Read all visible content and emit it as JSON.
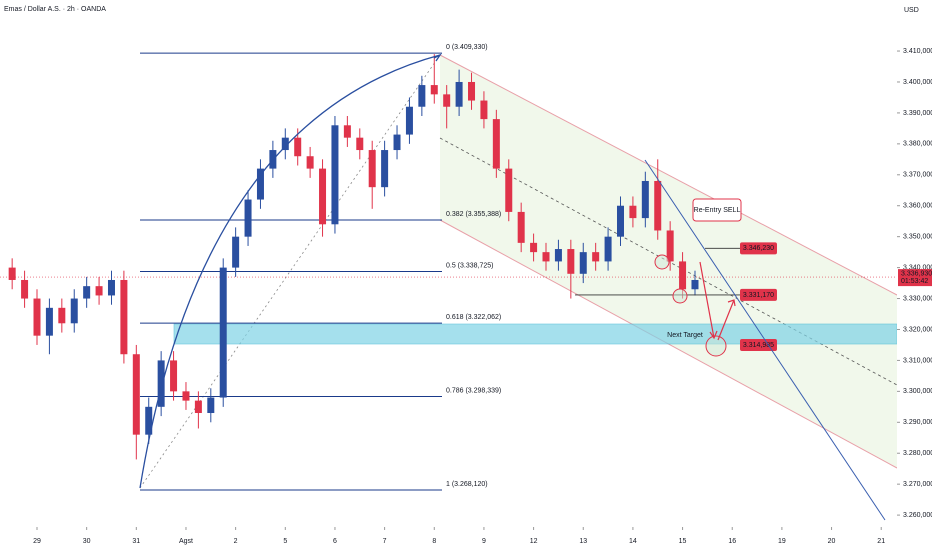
{
  "chart_data": {
    "type": "candlestick",
    "title": "Emas / Dollar A.S. · 2h · OANDA",
    "currency": "USD",
    "x": [
      -0.5,
      -0.25,
      0,
      0.25,
      0.5,
      0.75,
      1,
      1.25,
      1.5,
      1.75,
      2,
      2.25,
      2.5,
      2.75,
      3,
      3.25,
      3.5,
      3.75,
      4,
      4.25,
      4.5,
      4.75,
      5,
      5.25,
      5.5,
      5.75,
      6,
      6.25,
      6.5,
      6.75,
      7,
      7.25,
      7.5,
      7.75,
      8,
      8.25,
      8.5,
      8.75,
      9,
      9.25,
      9.5,
      9.75,
      10,
      10.25,
      10.5,
      10.75,
      11,
      11.25,
      11.5,
      11.75,
      12,
      12.25,
      12.5,
      12.75,
      13,
      13.25
    ],
    "open": [
      3.34,
      3.336,
      3.33,
      3.318,
      3.327,
      3.322,
      3.33,
      3.334,
      3.331,
      3.336,
      3.312,
      3.286,
      3.295,
      3.31,
      3.3,
      3.297,
      3.293,
      3.298,
      3.34,
      3.35,
      3.362,
      3.372,
      3.378,
      3.382,
      3.376,
      3.372,
      3.354,
      3.386,
      3.382,
      3.378,
      3.366,
      3.378,
      3.383,
      3.392,
      3.399,
      3.396,
      3.392,
      3.4,
      3.394,
      3.388,
      3.372,
      3.358,
      3.348,
      3.345,
      3.342,
      3.346,
      3.338,
      3.345,
      3.342,
      3.35,
      3.36,
      3.356,
      3.368,
      3.352,
      3.342,
      3.333
    ],
    "high": [
      3.343,
      3.339,
      3.333,
      3.33,
      3.33,
      3.333,
      3.337,
      3.337,
      3.339,
      3.339,
      3.315,
      3.298,
      3.313,
      3.313,
      3.303,
      3.3,
      3.301,
      3.343,
      3.353,
      3.365,
      3.375,
      3.381,
      3.385,
      3.385,
      3.379,
      3.375,
      3.389,
      3.389,
      3.385,
      3.381,
      3.381,
      3.386,
      3.395,
      3.402,
      3.409,
      3.399,
      3.404,
      3.403,
      3.397,
      3.391,
      3.375,
      3.361,
      3.351,
      3.348,
      3.349,
      3.349,
      3.348,
      3.348,
      3.353,
      3.363,
      3.363,
      3.371,
      3.375,
      3.355,
      3.345,
      3.339
    ],
    "low": [
      3.333,
      3.327,
      3.315,
      3.312,
      3.319,
      3.319,
      3.327,
      3.328,
      3.328,
      3.309,
      3.278,
      3.283,
      3.292,
      3.297,
      3.294,
      3.288,
      3.29,
      3.295,
      3.337,
      3.347,
      3.359,
      3.369,
      3.375,
      3.373,
      3.369,
      3.35,
      3.351,
      3.379,
      3.375,
      3.359,
      3.363,
      3.375,
      3.38,
      3.389,
      3.393,
      3.385,
      3.389,
      3.391,
      3.385,
      3.369,
      3.355,
      3.345,
      3.342,
      3.339,
      3.339,
      3.33,
      3.335,
      3.339,
      3.339,
      3.347,
      3.353,
      3.353,
      3.349,
      3.339,
      3.33,
      3.331
    ],
    "close": [
      3.336,
      3.33,
      3.318,
      3.327,
      3.322,
      3.33,
      3.334,
      3.331,
      3.336,
      3.312,
      3.286,
      3.295,
      3.31,
      3.3,
      3.297,
      3.293,
      3.298,
      3.34,
      3.35,
      3.362,
      3.372,
      3.378,
      3.382,
      3.376,
      3.372,
      3.354,
      3.386,
      3.382,
      3.378,
      3.366,
      3.378,
      3.383,
      3.392,
      3.399,
      3.396,
      3.392,
      3.4,
      3.394,
      3.388,
      3.372,
      3.358,
      3.348,
      3.345,
      3.342,
      3.346,
      3.338,
      3.345,
      3.342,
      3.35,
      3.36,
      3.356,
      3.368,
      3.352,
      3.342,
      3.333,
      3.336
    ],
    "up_color": "#2a4fa0",
    "down_color": "#e0334a",
    "xlim": [
      -0.745,
      17.318
    ],
    "ylim": [
      3.2568,
      3.4265
    ],
    "yticks": [
      {
        "value": 3.41,
        "label": "3.410,000"
      },
      {
        "value": 3.4,
        "label": "3.400,000"
      },
      {
        "value": 3.39,
        "label": "3.390,000"
      },
      {
        "value": 3.38,
        "label": "3.380,000"
      },
      {
        "value": 3.37,
        "label": "3.370,000"
      },
      {
        "value": 3.36,
        "label": "3.360,000"
      },
      {
        "value": 3.35,
        "label": "3.350,000"
      },
      {
        "value": 3.34,
        "label": "3.340,000"
      },
      {
        "value": 3.33,
        "label": "3.330,000"
      },
      {
        "value": 3.32,
        "label": "3.320,000"
      },
      {
        "value": 3.31,
        "label": "3.310,000"
      },
      {
        "value": 3.3,
        "label": "3.300,000"
      },
      {
        "value": 3.29,
        "label": "3.290,000"
      },
      {
        "value": 3.28,
        "label": "3.280,000"
      },
      {
        "value": 3.27,
        "label": "3.270,000"
      },
      {
        "value": 3.26,
        "label": "3.260,000"
      }
    ],
    "xticks": [
      {
        "value": 0,
        "label": "29"
      },
      {
        "value": 1,
        "label": "30"
      },
      {
        "value": 2,
        "label": "31"
      },
      {
        "value": 3,
        "label": "Agst"
      },
      {
        "value": 4,
        "label": "2"
      },
      {
        "value": 5,
        "label": "5"
      },
      {
        "value": 6,
        "label": "6"
      },
      {
        "value": 7,
        "label": "7"
      },
      {
        "value": 8,
        "label": "8"
      },
      {
        "value": 9,
        "label": "9"
      },
      {
        "value": 10,
        "label": "12"
      },
      {
        "value": 11,
        "label": "13"
      },
      {
        "value": 12,
        "label": "14"
      },
      {
        "value": 13,
        "label": "15"
      },
      {
        "value": 14,
        "label": "16"
      },
      {
        "value": 15,
        "label": "19"
      },
      {
        "value": 16,
        "label": "20"
      },
      {
        "value": 17,
        "label": "21"
      }
    ],
    "fib_levels": [
      {
        "value": 3.40933,
        "label": "0 (3.409,330)"
      },
      {
        "value": 3.355388,
        "label": "0.382 (3.355,388)"
      },
      {
        "value": 3.338725,
        "label": "0.5 (3.338,725)"
      },
      {
        "value": 3.322062,
        "label": "0.618 (3.322,062)"
      },
      {
        "value": 3.298339,
        "label": "0.786 (3.298,339)"
      },
      {
        "value": 3.26812,
        "label": "1 (3.268,120)"
      }
    ],
    "price_tags": [
      {
        "value": 3.34623,
        "label": "3.346,230"
      },
      {
        "value": 3.33117,
        "label": "3.331,170"
      },
      {
        "value": 3.314985,
        "label": "3.314,985"
      }
    ],
    "notes": [
      "Re-Entry SELL",
      "Next Target"
    ],
    "current_price": {
      "value": 3.33693,
      "label": "3.336,930"
    },
    "countdown": "01:53:42"
  }
}
